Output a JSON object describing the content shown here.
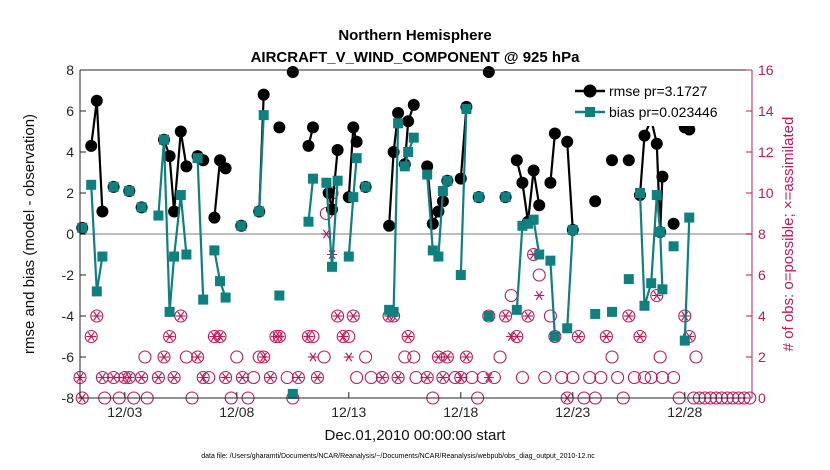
{
  "chart_data": {
    "type": "line",
    "title": "Northern Hemisphere",
    "subtitle": "AIRCRAFT_V_WIND_COMPONENT @ 925 hPa",
    "xlabel": "Dec.01,2010 00:00:00 start",
    "ylabel_left": "rmse and bias (model - observation)",
    "ylabel_right": "# of obs: o=possible; ×=assimilated",
    "footnote": "data file: /Users/gharamti/Documents/NCAR/Reanalysis/~/Documents/NCAR/Reanalysis/webpub/obs_diag_output_2010-12.nc",
    "xlim": [
      1.0,
      31.0
    ],
    "ylim_left": [
      -8,
      8
    ],
    "ylim_right": [
      0,
      16
    ],
    "yticks_left": [
      "-8",
      "-6",
      "-4",
      "-2",
      "0",
      "2",
      "4",
      "6",
      "8"
    ],
    "yticks_right": [
      "0",
      "2",
      "4",
      "6",
      "8",
      "10",
      "12",
      "14",
      "16"
    ],
    "xticks": [
      {
        "x": 3,
        "label": "12/03"
      },
      {
        "x": 8,
        "label": "12/08"
      },
      {
        "x": 13,
        "label": "12/13"
      },
      {
        "x": 18,
        "label": "12/18"
      },
      {
        "x": 23,
        "label": "12/23"
      },
      {
        "x": 28,
        "label": "12/28"
      }
    ],
    "zero_line": 0,
    "legend": {
      "position": "top-right",
      "entries": [
        "rmse pr=3.1727",
        "bias pr=0.023446"
      ]
    },
    "colors": {
      "rmse": "#000000",
      "bias": "#0e8080",
      "obs": "#c0185a",
      "zero": "#b4b4b4"
    },
    "series": [
      {
        "name": "rmse",
        "segments": [
          [
            [
              1.1,
              0.3
            ]
          ],
          [
            [
              1.5,
              4.3
            ],
            [
              1.75,
              6.5
            ],
            [
              2.0,
              1.1
            ]
          ],
          [
            [
              2.5,
              2.3
            ]
          ],
          [
            [
              3.2,
              2.1
            ]
          ],
          [
            [
              3.75,
              1.3
            ]
          ],
          [
            [
              4.75,
              4.6
            ],
            [
              5.0,
              3.8
            ],
            [
              5.2,
              1.1
            ],
            [
              5.5,
              5.0
            ],
            [
              5.75,
              3.3
            ]
          ],
          [
            [
              6.25,
              3.8
            ],
            [
              6.5,
              3.6
            ]
          ],
          [
            [
              7.0,
              0.8
            ],
            [
              7.25,
              3.6
            ],
            [
              7.5,
              3.2
            ]
          ],
          [
            [
              8.2,
              0.4
            ]
          ],
          [
            [
              9.0,
              1.1
            ],
            [
              9.2,
              6.8
            ]
          ],
          [
            [
              9.9,
              5.2
            ]
          ],
          [
            [
              10.5,
              7.9
            ]
          ],
          [
            [
              11.2,
              4.3
            ],
            [
              11.4,
              5.2
            ]
          ],
          [
            [
              12.1,
              2.0
            ],
            [
              12.25,
              1.2
            ],
            [
              12.5,
              4.1
            ]
          ],
          [
            [
              13.0,
              1.8
            ],
            [
              13.2,
              5.2
            ],
            [
              13.35,
              4.5
            ]
          ],
          [
            [
              13.75,
              2.3
            ]
          ],
          [
            [
              14.8,
              0.4
            ],
            [
              15.0,
              4.0
            ],
            [
              15.2,
              5.9
            ]
          ],
          [
            [
              15.5,
              3.4
            ],
            [
              15.65,
              5.5
            ],
            [
              15.9,
              6.3
            ]
          ],
          [
            [
              16.5,
              3.3
            ],
            [
              16.75,
              0.5
            ],
            [
              17.0,
              1.1
            ],
            [
              17.2,
              1.6
            ],
            [
              17.4,
              2.6
            ]
          ],
          [
            [
              18.0,
              2.7
            ],
            [
              18.25,
              6.2
            ]
          ],
          [
            [
              18.8,
              1.8
            ]
          ],
          [
            [
              19.25,
              7.9
            ]
          ],
          [
            [
              20.0,
              1.8
            ]
          ],
          [
            [
              20.5,
              3.6
            ],
            [
              20.75,
              2.5
            ],
            [
              21.0,
              0.6
            ],
            [
              21.25,
              3.1
            ],
            [
              21.5,
              1.4
            ]
          ],
          [
            [
              22.0,
              2.5
            ],
            [
              22.2,
              4.9
            ]
          ],
          [
            [
              22.75,
              4.5
            ],
            [
              23.0,
              0.2
            ]
          ],
          [
            [
              24.0,
              1.6
            ]
          ],
          [
            [
              24.75,
              3.6
            ]
          ],
          [
            [
              25.5,
              3.6
            ]
          ],
          [
            [
              26.0,
              1.9
            ],
            [
              26.2,
              4.8
            ],
            [
              26.5,
              5.6
            ],
            [
              26.75,
              4.4
            ],
            [
              26.9,
              0.1
            ],
            [
              27.0,
              2.8
            ]
          ],
          [
            [
              27.5,
              0.5
            ]
          ],
          [
            [
              28.0,
              5.2
            ],
            [
              28.2,
              5.1
            ]
          ]
        ]
      },
      {
        "name": "bias",
        "segments": [
          [
            [
              1.1,
              0.3
            ]
          ],
          [
            [
              1.5,
              2.4
            ],
            [
              1.75,
              -2.8
            ],
            [
              2.0,
              -1.1
            ]
          ],
          [
            [
              2.5,
              2.3
            ]
          ],
          [
            [
              3.2,
              2.1
            ]
          ],
          [
            [
              3.75,
              1.3
            ]
          ],
          [
            [
              4.5,
              0.9
            ],
            [
              4.75,
              4.6
            ],
            [
              5.0,
              -3.8
            ],
            [
              5.2,
              -1.1
            ],
            [
              5.5,
              1.9
            ],
            [
              5.75,
              -1.0
            ]
          ],
          [
            [
              6.25,
              3.7
            ],
            [
              6.5,
              -3.2
            ]
          ],
          [
            [
              7.0,
              -0.8
            ],
            [
              7.25,
              -2.3
            ],
            [
              7.5,
              -3.1
            ]
          ],
          [
            [
              8.2,
              0.4
            ]
          ],
          [
            [
              9.0,
              1.1
            ],
            [
              9.2,
              5.8
            ]
          ],
          [
            [
              9.9,
              -3.0
            ]
          ],
          [
            [
              10.5,
              -7.8
            ]
          ],
          [
            [
              11.2,
              0.6
            ],
            [
              11.4,
              2.7
            ]
          ],
          [
            [
              12.0,
              2.5
            ],
            [
              12.25,
              -1.6
            ],
            [
              12.5,
              2.6
            ]
          ],
          [
            [
              13.0,
              -1.1
            ],
            [
              13.2,
              1.8
            ],
            [
              13.35,
              3.7
            ]
          ],
          [
            [
              13.75,
              2.3
            ]
          ],
          [
            [
              14.8,
              -3.7
            ],
            [
              15.0,
              -3.8
            ],
            [
              15.2,
              5.4
            ]
          ],
          [
            [
              15.5,
              3.3
            ],
            [
              15.65,
              4.0
            ],
            [
              15.9,
              4.7
            ]
          ],
          [
            [
              16.5,
              2.9
            ],
            [
              16.75,
              -0.8
            ],
            [
              17.0,
              -1.1
            ],
            [
              17.2,
              2.1
            ],
            [
              17.4,
              2.6
            ]
          ],
          [
            [
              18.0,
              -2.0
            ],
            [
              18.25,
              6.1
            ]
          ],
          [
            [
              18.8,
              1.8
            ]
          ],
          [
            [
              19.25,
              -4.0
            ]
          ],
          [
            [
              20.0,
              1.8
            ]
          ],
          [
            [
              20.5,
              -3.7
            ],
            [
              20.75,
              0.4
            ],
            [
              21.0,
              0.5
            ],
            [
              21.25,
              0.7
            ],
            [
              21.5,
              -1.0
            ]
          ],
          [
            [
              22.0,
              -1.3
            ],
            [
              22.2,
              -5.0
            ]
          ],
          [
            [
              22.75,
              -4.6
            ],
            [
              23.0,
              0.2
            ]
          ],
          [
            [
              24.0,
              -3.9
            ]
          ],
          [
            [
              24.75,
              -3.8
            ]
          ],
          [
            [
              25.5,
              -2.2
            ]
          ],
          [
            [
              26.0,
              2.0
            ],
            [
              26.2,
              -3.5
            ],
            [
              26.5,
              -2.4
            ],
            [
              26.75,
              1.9
            ],
            [
              26.9,
              0.1
            ],
            [
              27.0,
              -2.7
            ]
          ],
          [
            [
              27.5,
              -0.6
            ]
          ],
          [
            [
              28.0,
              -5.2
            ],
            [
              28.2,
              0.8
            ]
          ]
        ]
      }
    ],
    "obs_possible": [
      [
        1.0,
        1
      ],
      [
        1.1,
        0
      ],
      [
        1.5,
        3
      ],
      [
        1.75,
        4
      ],
      [
        2.0,
        1
      ],
      [
        2.1,
        0
      ],
      [
        2.5,
        1
      ],
      [
        2.75,
        0
      ],
      [
        3.0,
        1
      ],
      [
        3.2,
        1
      ],
      [
        3.4,
        0
      ],
      [
        3.75,
        1
      ],
      [
        3.9,
        2
      ],
      [
        4.0,
        0
      ],
      [
        4.5,
        1
      ],
      [
        4.75,
        2
      ],
      [
        5.0,
        3
      ],
      [
        5.2,
        1
      ],
      [
        5.5,
        4
      ],
      [
        5.75,
        2
      ],
      [
        6.0,
        0
      ],
      [
        6.25,
        2
      ],
      [
        6.5,
        1
      ],
      [
        6.75,
        1
      ],
      [
        7.0,
        3
      ],
      [
        7.25,
        3
      ],
      [
        7.5,
        1
      ],
      [
        7.75,
        0
      ],
      [
        8.0,
        2
      ],
      [
        8.25,
        1
      ],
      [
        8.5,
        0
      ],
      [
        8.75,
        1
      ],
      [
        9.0,
        2
      ],
      [
        9.2,
        2
      ],
      [
        9.5,
        1
      ],
      [
        9.75,
        3
      ],
      [
        9.9,
        3
      ],
      [
        10.25,
        1
      ],
      [
        10.5,
        0
      ],
      [
        10.75,
        1
      ],
      [
        11.2,
        3
      ],
      [
        11.4,
        3
      ],
      [
        11.6,
        1
      ],
      [
        11.9,
        2
      ],
      [
        12.0,
        9
      ],
      [
        12.25,
        10
      ],
      [
        12.5,
        4
      ],
      [
        12.75,
        3
      ],
      [
        13.0,
        3
      ],
      [
        13.2,
        4
      ],
      [
        13.35,
        1
      ],
      [
        13.75,
        2
      ],
      [
        14.0,
        1
      ],
      [
        14.5,
        1
      ],
      [
        14.8,
        4
      ],
      [
        15.0,
        4
      ],
      [
        15.2,
        1
      ],
      [
        15.5,
        2
      ],
      [
        15.65,
        3
      ],
      [
        15.9,
        2
      ],
      [
        16.0,
        1
      ],
      [
        16.5,
        1
      ],
      [
        16.75,
        0
      ],
      [
        17.0,
        2
      ],
      [
        17.2,
        1
      ],
      [
        17.4,
        2
      ],
      [
        17.75,
        1
      ],
      [
        18.0,
        1
      ],
      [
        18.25,
        2
      ],
      [
        18.5,
        1
      ],
      [
        18.75,
        0
      ],
      [
        19.0,
        1
      ],
      [
        19.25,
        4
      ],
      [
        19.5,
        1
      ],
      [
        19.75,
        2
      ],
      [
        20.0,
        4
      ],
      [
        20.25,
        5
      ],
      [
        20.5,
        3
      ],
      [
        20.75,
        1
      ],
      [
        21.0,
        4
      ],
      [
        21.25,
        7
      ],
      [
        21.5,
        6
      ],
      [
        21.75,
        1
      ],
      [
        22.0,
        4
      ],
      [
        22.2,
        3
      ],
      [
        22.5,
        1
      ],
      [
        22.75,
        0
      ],
      [
        23.0,
        1
      ],
      [
        23.25,
        3
      ],
      [
        23.5,
        0
      ],
      [
        23.75,
        1
      ],
      [
        24.0,
        0
      ],
      [
        24.25,
        1
      ],
      [
        24.5,
        3
      ],
      [
        24.75,
        2
      ],
      [
        25.0,
        1
      ],
      [
        25.25,
        0
      ],
      [
        25.5,
        4
      ],
      [
        25.75,
        1
      ],
      [
        26.0,
        3
      ],
      [
        26.2,
        1
      ],
      [
        26.5,
        1
      ],
      [
        26.75,
        5
      ],
      [
        26.9,
        2
      ],
      [
        27.0,
        1
      ],
      [
        27.5,
        1
      ],
      [
        27.75,
        0
      ],
      [
        28.0,
        4
      ],
      [
        28.2,
        3
      ],
      [
        28.5,
        2
      ]
    ],
    "obs_assimilated": [
      [
        1.0,
        1
      ],
      [
        1.1,
        0
      ],
      [
        1.5,
        3
      ],
      [
        1.75,
        4
      ],
      [
        2.0,
        1
      ],
      [
        2.5,
        1
      ],
      [
        3.0,
        1
      ],
      [
        3.2,
        1
      ],
      [
        3.75,
        1
      ],
      [
        4.5,
        1
      ],
      [
        4.75,
        2
      ],
      [
        5.0,
        3
      ],
      [
        5.2,
        1
      ],
      [
        5.5,
        4
      ],
      [
        6.25,
        2
      ],
      [
        6.5,
        1
      ],
      [
        7.0,
        3
      ],
      [
        7.25,
        3
      ],
      [
        7.5,
        1
      ],
      [
        8.25,
        1
      ],
      [
        9.2,
        2
      ],
      [
        9.5,
        1
      ],
      [
        9.75,
        3
      ],
      [
        9.9,
        3
      ],
      [
        10.75,
        1
      ],
      [
        11.2,
        3
      ],
      [
        11.4,
        2
      ],
      [
        11.6,
        1
      ],
      [
        12.0,
        8
      ],
      [
        12.25,
        7
      ],
      [
        12.5,
        4
      ],
      [
        12.75,
        3
      ],
      [
        13.0,
        2
      ],
      [
        13.2,
        4
      ],
      [
        14.5,
        1
      ],
      [
        14.8,
        4
      ],
      [
        15.0,
        4
      ],
      [
        15.2,
        1
      ],
      [
        15.65,
        3
      ],
      [
        16.5,
        1
      ],
      [
        17.0,
        2
      ],
      [
        17.2,
        1
      ],
      [
        17.4,
        2
      ],
      [
        18.0,
        1
      ],
      [
        18.25,
        2
      ],
      [
        19.25,
        1
      ],
      [
        20.0,
        4
      ],
      [
        20.25,
        3
      ],
      [
        20.5,
        3
      ],
      [
        21.0,
        4
      ],
      [
        21.25,
        7
      ],
      [
        21.5,
        5
      ],
      [
        22.2,
        3
      ],
      [
        22.75,
        0
      ],
      [
        23.25,
        3
      ],
      [
        24.5,
        3
      ],
      [
        25.5,
        4
      ],
      [
        26.0,
        3
      ],
      [
        26.75,
        5
      ],
      [
        28.0,
        4
      ],
      [
        28.2,
        3
      ]
    ],
    "obs_zero_run": [
      28.4,
      31.0,
      0.25
    ]
  }
}
